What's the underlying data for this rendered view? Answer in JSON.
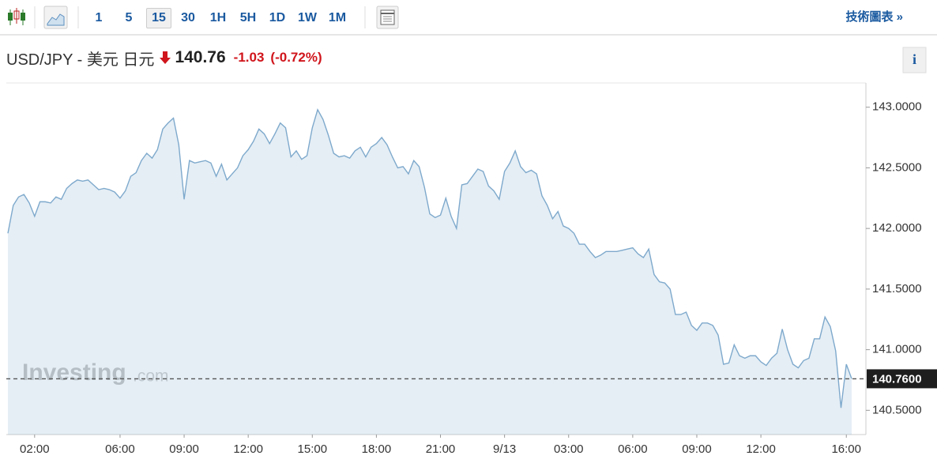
{
  "toolbar": {
    "intervals": [
      "1",
      "5",
      "15",
      "30",
      "1H",
      "5H",
      "1D",
      "1W",
      "1M"
    ],
    "selected": "15",
    "link": "技術圖表 »"
  },
  "header": {
    "title": "USD/JPY - 美元 日元",
    "price": "140.76",
    "change": "-1.03",
    "change_percent": "(-0.72%)",
    "info": "i"
  },
  "chart_data": {
    "type": "area",
    "color": "#7ea9cc",
    "grid": false,
    "watermark": [
      "Investing",
      ".com"
    ],
    "categories": [
      null,
      null,
      null,
      null,
      null,
      "02:00",
      null,
      null,
      null,
      null,
      null,
      null,
      null,
      null,
      null,
      null,
      null,
      null,
      null,
      null,
      null,
      "06:00",
      null,
      null,
      null,
      null,
      null,
      null,
      null,
      null,
      null,
      null,
      null,
      "09:00",
      null,
      null,
      null,
      null,
      null,
      null,
      null,
      null,
      null,
      null,
      null,
      "12:00",
      null,
      null,
      null,
      null,
      null,
      null,
      null,
      null,
      null,
      null,
      null,
      "15:00",
      null,
      null,
      null,
      null,
      null,
      null,
      null,
      null,
      null,
      null,
      null,
      "18:00",
      null,
      null,
      null,
      null,
      null,
      null,
      null,
      null,
      null,
      null,
      null,
      "21:00",
      null,
      null,
      null,
      null,
      null,
      null,
      null,
      null,
      null,
      null,
      null,
      "9/13",
      null,
      null,
      null,
      null,
      null,
      null,
      null,
      null,
      null,
      null,
      null,
      "03:00",
      null,
      null,
      null,
      null,
      null,
      null,
      null,
      null,
      null,
      null,
      null,
      "06:00",
      null,
      null,
      null,
      null,
      null,
      null,
      null,
      null,
      null,
      null,
      null,
      "09:00",
      null,
      null,
      null,
      null,
      null,
      null,
      null,
      null,
      null,
      null,
      null,
      "12:00",
      null,
      null,
      null,
      null,
      null,
      null,
      null,
      null,
      null,
      null,
      null,
      null,
      null,
      null,
      null,
      "16:00",
      null
    ],
    "values": [
      141.96,
      142.19,
      142.26,
      142.28,
      142.21,
      142.1,
      142.22,
      142.22,
      142.21,
      142.26,
      142.24,
      142.33,
      142.37,
      142.4,
      142.39,
      142.4,
      142.36,
      142.32,
      142.33,
      142.32,
      142.3,
      142.25,
      142.31,
      142.43,
      142.46,
      142.56,
      142.62,
      142.58,
      142.65,
      142.82,
      142.87,
      142.91,
      142.69,
      142.24,
      142.56,
      142.54,
      142.55,
      142.56,
      142.54,
      142.43,
      142.53,
      142.4,
      142.45,
      142.5,
      142.6,
      142.65,
      142.72,
      142.82,
      142.78,
      142.7,
      142.78,
      142.87,
      142.83,
      142.59,
      142.64,
      142.57,
      142.6,
      142.83,
      142.98,
      142.9,
      142.77,
      142.62,
      142.59,
      142.6,
      142.58,
      142.64,
      142.67,
      142.59,
      142.67,
      142.7,
      142.75,
      142.69,
      142.59,
      142.5,
      142.51,
      142.45,
      142.56,
      142.51,
      142.34,
      142.12,
      142.09,
      142.11,
      142.25,
      142.1,
      142.0,
      142.36,
      142.37,
      142.43,
      142.49,
      142.47,
      142.35,
      142.31,
      142.24,
      142.47,
      142.54,
      142.64,
      142.51,
      142.46,
      142.48,
      142.45,
      142.27,
      142.19,
      142.08,
      142.14,
      142.02,
      142.0,
      141.96,
      141.87,
      141.87,
      141.81,
      141.76,
      141.78,
      141.81,
      141.81,
      141.81,
      141.82,
      141.83,
      141.84,
      141.79,
      141.76,
      141.83,
      141.62,
      141.56,
      141.55,
      141.5,
      141.29,
      141.29,
      141.31,
      141.2,
      141.16,
      141.22,
      141.22,
      141.2,
      141.12,
      140.88,
      140.89,
      141.04,
      140.95,
      140.93,
      140.95,
      140.95,
      140.9,
      140.87,
      140.93,
      140.97,
      141.17,
      141.0,
      140.88,
      140.85,
      140.91,
      140.93,
      141.09,
      141.09,
      141.27,
      141.19,
      140.99,
      140.52,
      140.88,
      140.76
    ],
    "ylim": [
      140.3,
      143.2
    ],
    "yticks": [
      {
        "value": 140.5,
        "label": "140.5000"
      },
      {
        "value": 141,
        "label": "141.0000"
      },
      {
        "value": 141.5,
        "label": "141.5000"
      },
      {
        "value": 142,
        "label": "142.0000"
      },
      {
        "value": 142.5,
        "label": "142.5000"
      },
      {
        "value": 143,
        "label": "143.0000"
      }
    ],
    "last_price": {
      "value": 140.76,
      "label": "140.7600"
    }
  }
}
